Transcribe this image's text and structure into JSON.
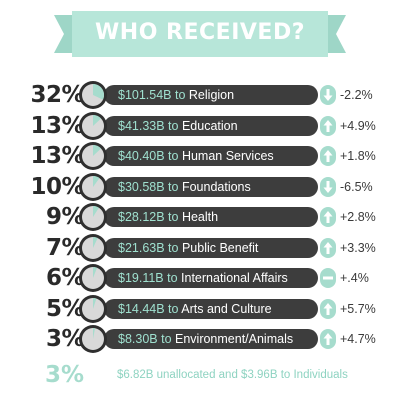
{
  "title": "WHO RECEIVED?",
  "colors": {
    "banner": "#b7e6d9",
    "bar": "#3d3d3d",
    "accent": "#a6dccd",
    "amount_text": "#9fe0cf",
    "pie_bg": "#d9d9d9",
    "pie_ring": "#2f2f2f"
  },
  "chart_data": {
    "type": "bar",
    "title": "WHO RECEIVED?",
    "categories": [
      "Religion",
      "Education",
      "Human Services",
      "Foundations",
      "Health",
      "Public Benefit",
      "International Affairs",
      "Arts and Culture",
      "Environment/Animals"
    ],
    "series": [
      {
        "values": [
          32,
          13,
          13,
          10,
          9,
          7,
          6,
          5,
          3
        ]
      }
    ],
    "rows": [
      {
        "pct": "32%",
        "share": 0.32,
        "amount": "$101.54B",
        "category": "Religion",
        "trend": "down",
        "change": "-2.2%"
      },
      {
        "pct": "13%",
        "share": 0.13,
        "amount": "$41.33B",
        "category": "Education",
        "trend": "up",
        "change": "+4.9%"
      },
      {
        "pct": "13%",
        "share": 0.13,
        "amount": "$40.40B",
        "category": "Human Services",
        "trend": "up",
        "change": "+1.8%"
      },
      {
        "pct": "10%",
        "share": 0.1,
        "amount": "$30.58B",
        "category": "Foundations",
        "trend": "down",
        "change": "-6.5%"
      },
      {
        "pct": "9%",
        "share": 0.09,
        "amount": "$28.12B",
        "category": "Health",
        "trend": "up",
        "change": "+2.8%"
      },
      {
        "pct": "7%",
        "share": 0.07,
        "amount": "$21.63B",
        "category": "Public Benefit",
        "trend": "up",
        "change": "+3.3%"
      },
      {
        "pct": "6%",
        "share": 0.06,
        "amount": "$19.11B",
        "category": "International Affairs",
        "trend": "flat",
        "change": "+.4%"
      },
      {
        "pct": "5%",
        "share": 0.05,
        "amount": "$14.44B",
        "category": "Arts and Culture",
        "trend": "up",
        "change": "+5.7%"
      },
      {
        "pct": "3%",
        "share": 0.03,
        "amount": "$8.30B",
        "category": "Environment/Animals",
        "trend": "up",
        "change": "+4.7%"
      }
    ],
    "footer": {
      "pct": "3%",
      "note": "$6.82B unallocated and $3.96B to Individuals"
    }
  }
}
